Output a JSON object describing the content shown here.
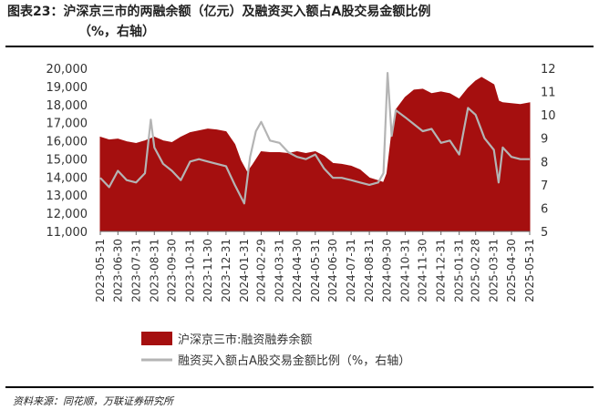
{
  "title_line1": "图表23：沪深京三市的两融余额（亿元）及融资买入额占A股交易金额比例",
  "title_line2": "（%，右轴）",
  "source": "资料来源：同花顺，万联证券研究所",
  "chart_data": {
    "type": "area+line",
    "x_ticks": [
      "2023-05-31",
      "2023-06-30",
      "2023-07-31",
      "2023-08-31",
      "2023-09-30",
      "2023-10-31",
      "2023-11-30",
      "2023-12-31",
      "2024-01-31",
      "2024-02-29",
      "2024-03-31",
      "2024-04-30",
      "2024-05-31",
      "2024-06-30",
      "2024-07-31",
      "2024-08-31",
      "2024-09-30",
      "2024-10-31",
      "2024-11-30",
      "2024-12-31",
      "2025-01-31",
      "2025-02-28",
      "2025-03-31",
      "2025-04-30",
      "2025-05-31"
    ],
    "y_left_ticks": [
      "11,000",
      "12,000",
      "13,000",
      "14,000",
      "15,000",
      "16,000",
      "17,000",
      "18,000",
      "19,000",
      "20,000"
    ],
    "y_left_range": [
      11000,
      20000
    ],
    "y_right_ticks": [
      "5",
      "6",
      "7",
      "8",
      "9",
      "10",
      "11",
      "12"
    ],
    "y_right_range": [
      5,
      12
    ],
    "legend": [
      "沪深京三市:融资融券余额",
      "融资买入额占A股交易金额比例（%，右轴）"
    ],
    "colors": {
      "area": "#a50f0f",
      "line": "#b4b4b4"
    },
    "series": [
      {
        "name": "沪深京三市:融资融券余额",
        "axis": "left",
        "x": [
          "2023-05-31",
          "2023-06-15",
          "2023-06-30",
          "2023-07-15",
          "2023-07-31",
          "2023-08-15",
          "2023-08-31",
          "2023-09-15",
          "2023-09-30",
          "2023-10-15",
          "2023-10-31",
          "2023-11-15",
          "2023-11-30",
          "2023-12-15",
          "2023-12-31",
          "2024-01-15",
          "2024-01-25",
          "2024-02-05",
          "2024-02-15",
          "2024-02-29",
          "2024-03-15",
          "2024-03-31",
          "2024-04-15",
          "2024-04-30",
          "2024-05-15",
          "2024-05-31",
          "2024-06-15",
          "2024-06-30",
          "2024-07-15",
          "2024-07-31",
          "2024-08-15",
          "2024-08-31",
          "2024-09-15",
          "2024-09-24",
          "2024-09-30",
          "2024-10-08",
          "2024-10-15",
          "2024-10-31",
          "2024-11-15",
          "2024-11-30",
          "2024-12-15",
          "2024-12-31",
          "2025-01-15",
          "2025-01-31",
          "2025-02-15",
          "2025-02-28",
          "2025-03-10",
          "2025-03-31",
          "2025-04-08",
          "2025-04-15",
          "2025-04-30",
          "2025-05-15",
          "2025-05-31"
        ],
        "values": [
          16200,
          16050,
          16100,
          15950,
          15850,
          16000,
          16200,
          16000,
          15900,
          16200,
          16450,
          16550,
          16650,
          16600,
          16500,
          15800,
          14900,
          14250,
          14700,
          15400,
          15350,
          15350,
          15300,
          15400,
          15300,
          15400,
          15150,
          14750,
          14700,
          14600,
          14400,
          13950,
          13800,
          13700,
          14200,
          16400,
          17700,
          18400,
          18800,
          18850,
          18600,
          18700,
          18600,
          18300,
          18900,
          19300,
          19500,
          19100,
          18200,
          18100,
          18050,
          18000,
          18100
        ]
      },
      {
        "name": "融资买入额占A股交易金额比例（%，右轴）",
        "axis": "right",
        "x": [
          "2023-05-31",
          "2023-06-15",
          "2023-06-30",
          "2023-07-15",
          "2023-07-31",
          "2023-08-15",
          "2023-08-25",
          "2023-08-31",
          "2023-09-15",
          "2023-09-30",
          "2023-10-15",
          "2023-10-31",
          "2023-11-15",
          "2023-11-30",
          "2023-12-15",
          "2023-12-31",
          "2024-01-15",
          "2024-01-31",
          "2024-02-10",
          "2024-02-20",
          "2024-02-29",
          "2024-03-15",
          "2024-03-31",
          "2024-04-15",
          "2024-04-30",
          "2024-05-15",
          "2024-05-31",
          "2024-06-15",
          "2024-06-30",
          "2024-07-15",
          "2024-07-31",
          "2024-08-15",
          "2024-08-31",
          "2024-09-15",
          "2024-09-24",
          "2024-10-01",
          "2024-10-08",
          "2024-10-15",
          "2024-10-31",
          "2024-11-15",
          "2024-11-30",
          "2024-12-15",
          "2024-12-31",
          "2025-01-15",
          "2025-01-31",
          "2025-02-15",
          "2025-02-28",
          "2025-03-15",
          "2025-03-31",
          "2025-04-08",
          "2025-04-15",
          "2025-04-30",
          "2025-05-15",
          "2025-05-31"
        ],
        "values": [
          7.3,
          6.9,
          7.6,
          7.2,
          7.1,
          7.5,
          9.8,
          8.6,
          7.9,
          7.6,
          7.2,
          8.0,
          8.1,
          8.0,
          7.9,
          7.8,
          7.0,
          6.2,
          8.2,
          9.3,
          9.7,
          8.9,
          8.8,
          8.4,
          8.2,
          8.1,
          8.3,
          7.7,
          7.3,
          7.3,
          7.2,
          7.1,
          7.0,
          7.1,
          7.5,
          11.8,
          9.1,
          10.2,
          9.9,
          9.6,
          9.3,
          9.4,
          8.8,
          8.9,
          8.3,
          10.3,
          10.0,
          9.0,
          8.5,
          7.1,
          8.6,
          8.2,
          8.1,
          8.1
        ]
      }
    ]
  }
}
